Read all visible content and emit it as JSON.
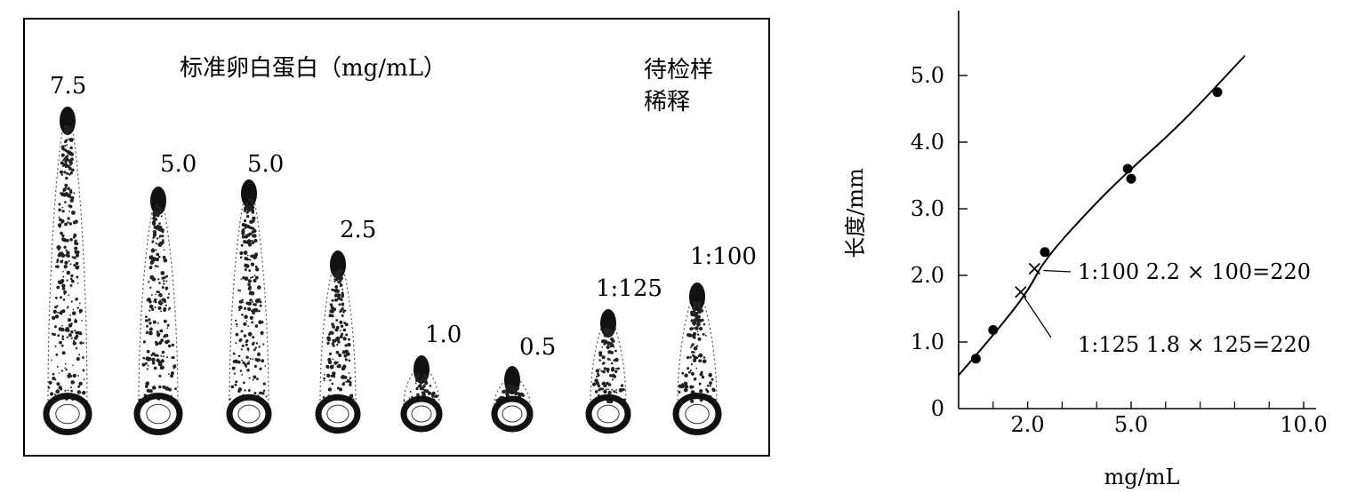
{
  "gel": {
    "title": "标准卵白蛋白（mg/mL）",
    "sample_title_line1": "待检样",
    "sample_title_line2": "稀释",
    "lane_labels": [
      "7.5",
      "5.0",
      "5.0",
      "2.5",
      "1.0",
      "0.5",
      "1:125",
      "1:100"
    ]
  },
  "chart_data": {
    "type": "scatter",
    "title": "",
    "xlabel": "mg/mL",
    "ylabel": "长度/mm",
    "xlim": [
      0,
      10.0
    ],
    "ylim": [
      0,
      5.8
    ],
    "x_ticks": [
      "2.0",
      "5.0",
      "10.0"
    ],
    "x_tick_values": [
      2.0,
      5.0,
      10.0
    ],
    "extra_x_ticks": [
      1.0,
      3.0,
      4.0,
      6.0,
      7.0,
      8.0,
      9.0
    ],
    "y_ticks": [
      "0",
      "1.0",
      "2.0",
      "3.0",
      "4.0",
      "5.0"
    ],
    "y_tick_values": [
      0,
      1.0,
      2.0,
      3.0,
      4.0,
      5.0
    ],
    "points": [
      {
        "x": 0.5,
        "y": 0.75
      },
      {
        "x": 1.0,
        "y": 1.18
      },
      {
        "x": 2.5,
        "y": 2.35
      },
      {
        "x": 4.9,
        "y": 3.6
      },
      {
        "x": 5.0,
        "y": 3.45
      },
      {
        "x": 7.5,
        "y": 4.75
      }
    ],
    "curve": [
      {
        "x": 0.0,
        "y": 0.5
      },
      {
        "x": 1.0,
        "y": 1.1
      },
      {
        "x": 2.0,
        "y": 1.75
      },
      {
        "x": 2.5,
        "y": 2.25
      },
      {
        "x": 4.0,
        "y": 3.1
      },
      {
        "x": 5.0,
        "y": 3.6
      },
      {
        "x": 6.5,
        "y": 4.3
      },
      {
        "x": 8.3,
        "y": 5.3
      }
    ],
    "samples": [
      {
        "label": "1:100  2.2 × 100=220",
        "x": 2.2,
        "y": 2.1
      },
      {
        "label": "1:125  1.8 × 125=220",
        "x": 1.8,
        "y": 1.75
      }
    ]
  }
}
